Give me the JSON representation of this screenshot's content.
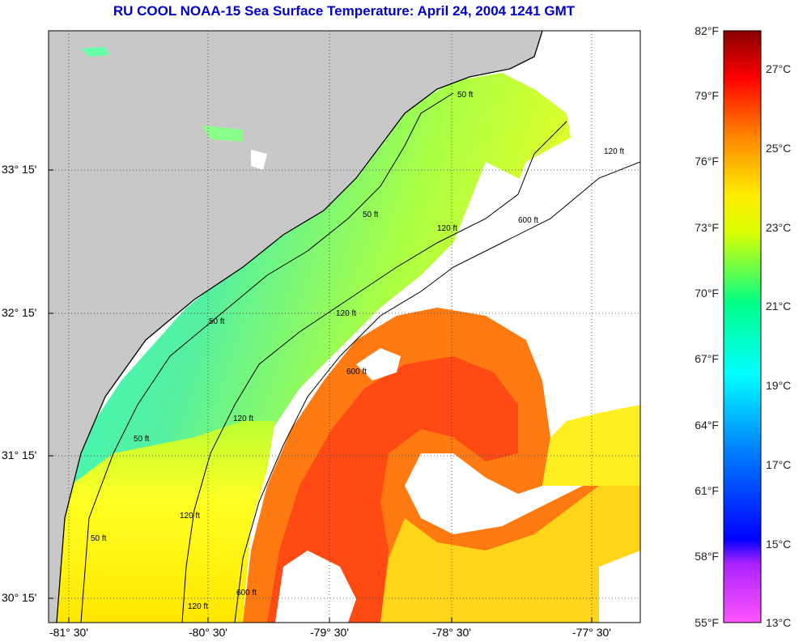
{
  "title": "RU COOL  NOAA-15  Sea Surface Temperature:  April 24, 2004 1241 GMT",
  "title_color": "#0000cc",
  "colors": {
    "land": "#c8c8c8",
    "cloud": "#ffffff",
    "coast_scale": [
      "#ff55ff",
      "#8800ff",
      "#0000ff",
      "#00ffff",
      "#00ff80",
      "#ffff00",
      "#ff8800",
      "#ff0000",
      "#880000"
    ]
  },
  "map": {
    "lat_labels": [
      "33° 15'",
      "32° 15'",
      "31° 15'",
      "30° 15'"
    ],
    "lon_labels": [
      "-81° 30'",
      "-80° 30'",
      "-79° 30'",
      "-78° 30'",
      "-77° 30'"
    ],
    "grid": "dotted",
    "contours": [
      {
        "label": "50 ft"
      },
      {
        "label": "120 ft"
      },
      {
        "label": "600 ft"
      }
    ],
    "contour_labels": [
      "50 ft",
      "50 ft",
      "50 ft",
      "50 ft",
      "50 ft",
      "120 ft",
      "120 ft",
      "120 ft",
      "120 ft",
      "120 ft",
      "120 ft",
      "600 ft",
      "600 ft",
      "600 ft"
    ]
  },
  "colorbar": {
    "fahrenheit": [
      "82°F",
      "79°F",
      "76°F",
      "73°F",
      "70°F",
      "67°F",
      "64°F",
      "61°F",
      "58°F",
      "55°F"
    ],
    "celsius": [
      "27°C",
      "25°C",
      "23°C",
      "21°C",
      "19°C",
      "17°C",
      "15°C",
      "13°C"
    ]
  }
}
